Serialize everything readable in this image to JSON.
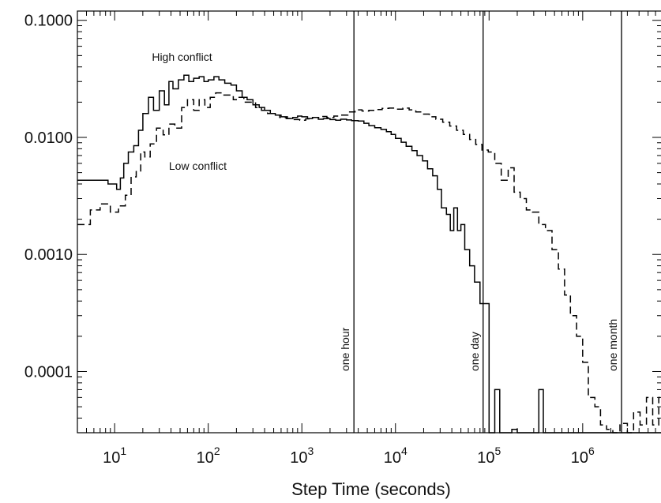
{
  "chart_data": {
    "type": "line",
    "title": "",
    "xlabel": "Step Time (seconds)",
    "ylabel": "",
    "xscale": "log",
    "yscale": "log",
    "xlim": [
      4.0,
      7000000
    ],
    "ylim": [
      3e-05,
      0.12
    ],
    "grid": false,
    "x_ticks": [
      {
        "value": 10,
        "base": "10",
        "exp": "1"
      },
      {
        "value": 100,
        "base": "10",
        "exp": "2"
      },
      {
        "value": 1000,
        "base": "10",
        "exp": "3"
      },
      {
        "value": 10000,
        "base": "10",
        "exp": "4"
      },
      {
        "value": 100000,
        "base": "10",
        "exp": "5"
      },
      {
        "value": 1000000,
        "base": "10",
        "exp": "6"
      }
    ],
    "y_ticks": [
      {
        "value": 0.1,
        "label": "0.1000"
      },
      {
        "value": 0.01,
        "label": "0.0100"
      },
      {
        "value": 0.001,
        "label": "0.0010"
      },
      {
        "value": 0.0001,
        "label": "0.0001"
      }
    ],
    "annotations": [
      {
        "text": "High conflict",
        "x": 25,
        "y": 0.045
      },
      {
        "text": "Low conflict",
        "x": 38,
        "y": 0.0053
      }
    ],
    "reference_lines": [
      {
        "label": "one hour",
        "x": 3600
      },
      {
        "label": "one day",
        "x": 86400
      },
      {
        "label": "one month",
        "x": 2600000
      }
    ],
    "series": [
      {
        "style": "solid",
        "x": [
          4,
          6.5,
          8.5,
          10.5,
          11.5,
          12.5,
          14,
          16,
          18,
          20,
          23,
          26,
          30,
          34,
          38,
          42,
          48,
          55,
          62,
          70,
          80,
          90,
          100,
          115,
          130,
          150,
          175,
          200,
          230,
          260,
          300,
          350,
          400,
          460,
          520,
          600,
          700,
          800,
          900,
          1000,
          1150,
          1300,
          1500,
          1700,
          2000,
          2300,
          2600,
          3000,
          3400,
          4000,
          4600,
          5200,
          6000,
          7000,
          8000,
          9000,
          10000,
          11500,
          13000,
          15000,
          17000,
          19500,
          22000,
          25000,
          28000,
          31000,
          35000,
          38500,
          42000,
          46000,
          50000,
          55000,
          62000,
          70000,
          80000,
          90000,
          100000,
          115000,
          130000,
          150000,
          175000,
          200000,
          230000,
          260000,
          300000,
          340000,
          380000,
          420000,
          470000,
          5500000
        ],
        "y": [
          0.0043,
          0.0043,
          0.004,
          0.0036,
          0.0045,
          0.006,
          0.0075,
          0.0085,
          0.0115,
          0.016,
          0.022,
          0.017,
          0.025,
          0.019,
          0.03,
          0.026,
          0.031,
          0.034,
          0.03,
          0.032,
          0.033,
          0.03,
          0.031,
          0.033,
          0.031,
          0.029,
          0.028,
          0.025,
          0.022,
          0.021,
          0.019,
          0.018,
          0.017,
          0.016,
          0.0155,
          0.015,
          0.0145,
          0.0148,
          0.0152,
          0.015,
          0.0145,
          0.0148,
          0.0143,
          0.0145,
          0.0142,
          0.014,
          0.0143,
          0.0141,
          0.0139,
          0.0138,
          0.0132,
          0.0126,
          0.0121,
          0.0117,
          0.0112,
          0.0106,
          0.0098,
          0.0091,
          0.0084,
          0.0077,
          0.007,
          0.0063,
          0.0054,
          0.0047,
          0.0036,
          0.0025,
          0.0022,
          0.0016,
          0.0025,
          0.0016,
          0.0018,
          0.0011,
          0.0008,
          0.00058,
          0.00038,
          0.00038,
          3e-05,
          7e-05,
          3e-05,
          3e-05,
          3.2e-05,
          3e-05,
          3e-05,
          3e-05,
          3e-05,
          7e-05,
          3e-05,
          3e-05,
          3e-05,
          3e-05
        ]
      },
      {
        "style": "dashed",
        "x": [
          4,
          5.5,
          7,
          9,
          11,
          13,
          15,
          17,
          19,
          21,
          24,
          28,
          33,
          38,
          44,
          52,
          60,
          70,
          80,
          92,
          105,
          120,
          140,
          160,
          185,
          210,
          240,
          280,
          320,
          370,
          430,
          500,
          580,
          680,
          800,
          950,
          1100,
          1300,
          1550,
          1850,
          2200,
          2600,
          3100,
          3700,
          4400,
          5200,
          6100,
          7200,
          8500,
          10000,
          12000,
          14000,
          16500,
          19500,
          23000,
          27000,
          32000,
          38000,
          45000,
          53000,
          62000,
          72000,
          84000,
          98000,
          115000,
          135000,
          160000,
          185000,
          215000,
          250000,
          290000,
          340000,
          400000,
          470000,
          550000,
          640000,
          740000,
          860000,
          1000000,
          1150000,
          1350000,
          1550000,
          1800000,
          2100000,
          2500000,
          3000000,
          3500000,
          4100000,
          4800000,
          5600000,
          6500000
        ],
        "y": [
          0.0018,
          0.0024,
          0.0027,
          0.0023,
          0.0026,
          0.0032,
          0.0046,
          0.0051,
          0.0075,
          0.0068,
          0.0088,
          0.012,
          0.0105,
          0.013,
          0.012,
          0.018,
          0.021,
          0.017,
          0.021,
          0.018,
          0.022,
          0.024,
          0.023,
          0.023,
          0.021,
          0.022,
          0.02,
          0.02,
          0.018,
          0.017,
          0.016,
          0.0155,
          0.0148,
          0.0145,
          0.0142,
          0.014,
          0.0144,
          0.0148,
          0.0151,
          0.0148,
          0.0152,
          0.0155,
          0.0165,
          0.0172,
          0.0168,
          0.017,
          0.0173,
          0.0177,
          0.0178,
          0.0174,
          0.0178,
          0.0172,
          0.0165,
          0.0158,
          0.015,
          0.0143,
          0.0135,
          0.0125,
          0.0115,
          0.0106,
          0.0096,
          0.0087,
          0.0078,
          0.0075,
          0.006,
          0.0043,
          0.0055,
          0.0034,
          0.003,
          0.0024,
          0.0023,
          0.0018,
          0.0016,
          0.0011,
          0.00075,
          0.00045,
          0.0003,
          0.0002,
          0.00012,
          6e-05,
          5e-05,
          3.5e-05,
          3.2e-05,
          3e-05,
          3.6e-05,
          3e-05,
          4.5e-05,
          3.5e-05,
          6e-05,
          3.5e-05,
          6e-05
        ]
      }
    ]
  }
}
